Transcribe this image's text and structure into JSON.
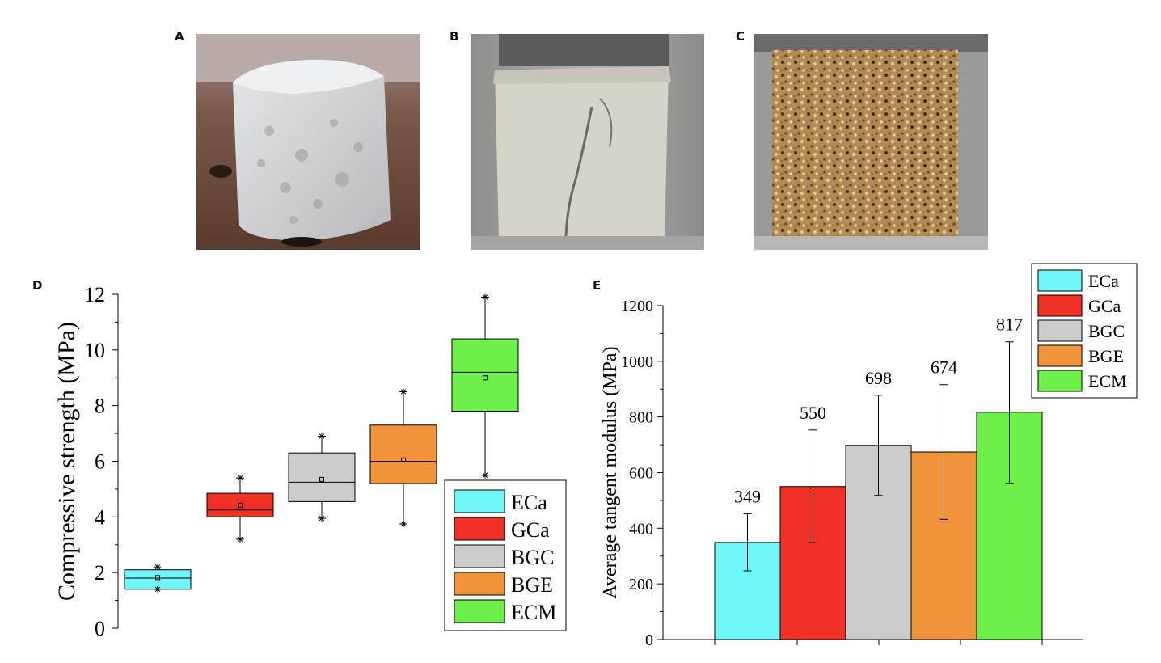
{
  "panels": {
    "a": "A",
    "b": "B",
    "c": "C",
    "d": "D",
    "e": "E"
  },
  "colors": {
    "ECa": "#6ff6f8",
    "GCa": "#ee3124",
    "BGC": "#cccccc",
    "BGE": "#f0933a",
    "ECM": "#6ef04a"
  },
  "chart_data": [
    {
      "type": "box",
      "panel": "D",
      "ylabel": "Compressive strength (MPa)",
      "ylim": [
        0,
        12
      ],
      "yticks": [
        0,
        2,
        4,
        6,
        8,
        10,
        12
      ],
      "legend": {
        "placement": "bottom-right",
        "entries": [
          "ECa",
          "GCa",
          "BGC",
          "BGE",
          "ECM"
        ]
      },
      "series": [
        {
          "name": "ECa",
          "q1": 1.4,
          "median": 1.8,
          "q3": 2.1,
          "mean": 1.82,
          "whisker_low": 1.4,
          "whisker_high": 2.1,
          "outliers": [
            1.4,
            2.2
          ]
        },
        {
          "name": "GCa",
          "q1": 4.0,
          "median": 4.25,
          "q3": 4.85,
          "mean": 4.42,
          "whisker_low": 3.2,
          "whisker_high": 5.4,
          "outliers": [
            3.2,
            5.4
          ]
        },
        {
          "name": "BGC",
          "q1": 4.55,
          "median": 5.25,
          "q3": 6.3,
          "mean": 5.35,
          "whisker_low": 3.95,
          "whisker_high": 6.9,
          "outliers": [
            3.95,
            6.9
          ]
        },
        {
          "name": "BGE",
          "q1": 5.2,
          "median": 6.0,
          "q3": 7.3,
          "mean": 6.05,
          "whisker_low": 3.75,
          "whisker_high": 8.5,
          "outliers": [
            3.75,
            8.5
          ]
        },
        {
          "name": "ECM",
          "q1": 7.8,
          "median": 9.2,
          "q3": 10.4,
          "mean": 9.0,
          "whisker_low": 5.5,
          "whisker_high": 11.9,
          "outliers": [
            5.5,
            11.9
          ]
        }
      ]
    },
    {
      "type": "bar",
      "panel": "E",
      "ylabel": "Average tangent modulus (MPa)",
      "ylim": [
        0,
        1200
      ],
      "yticks": [
        0,
        200,
        400,
        600,
        800,
        1000,
        1200
      ],
      "legend": {
        "placement": "top-right",
        "entries": [
          "ECa",
          "GCa",
          "BGC",
          "BGE",
          "ECM"
        ]
      },
      "categories": [
        "ECa",
        "GCa",
        "BGC",
        "BGE",
        "ECM"
      ],
      "values": [
        349,
        550,
        698,
        674,
        817
      ],
      "labels": [
        "349",
        "550",
        "698",
        "674",
        "817"
      ],
      "error_low": [
        247,
        348,
        518,
        432,
        562
      ],
      "error_high": [
        452,
        753,
        878,
        916,
        1070
      ]
    }
  ]
}
